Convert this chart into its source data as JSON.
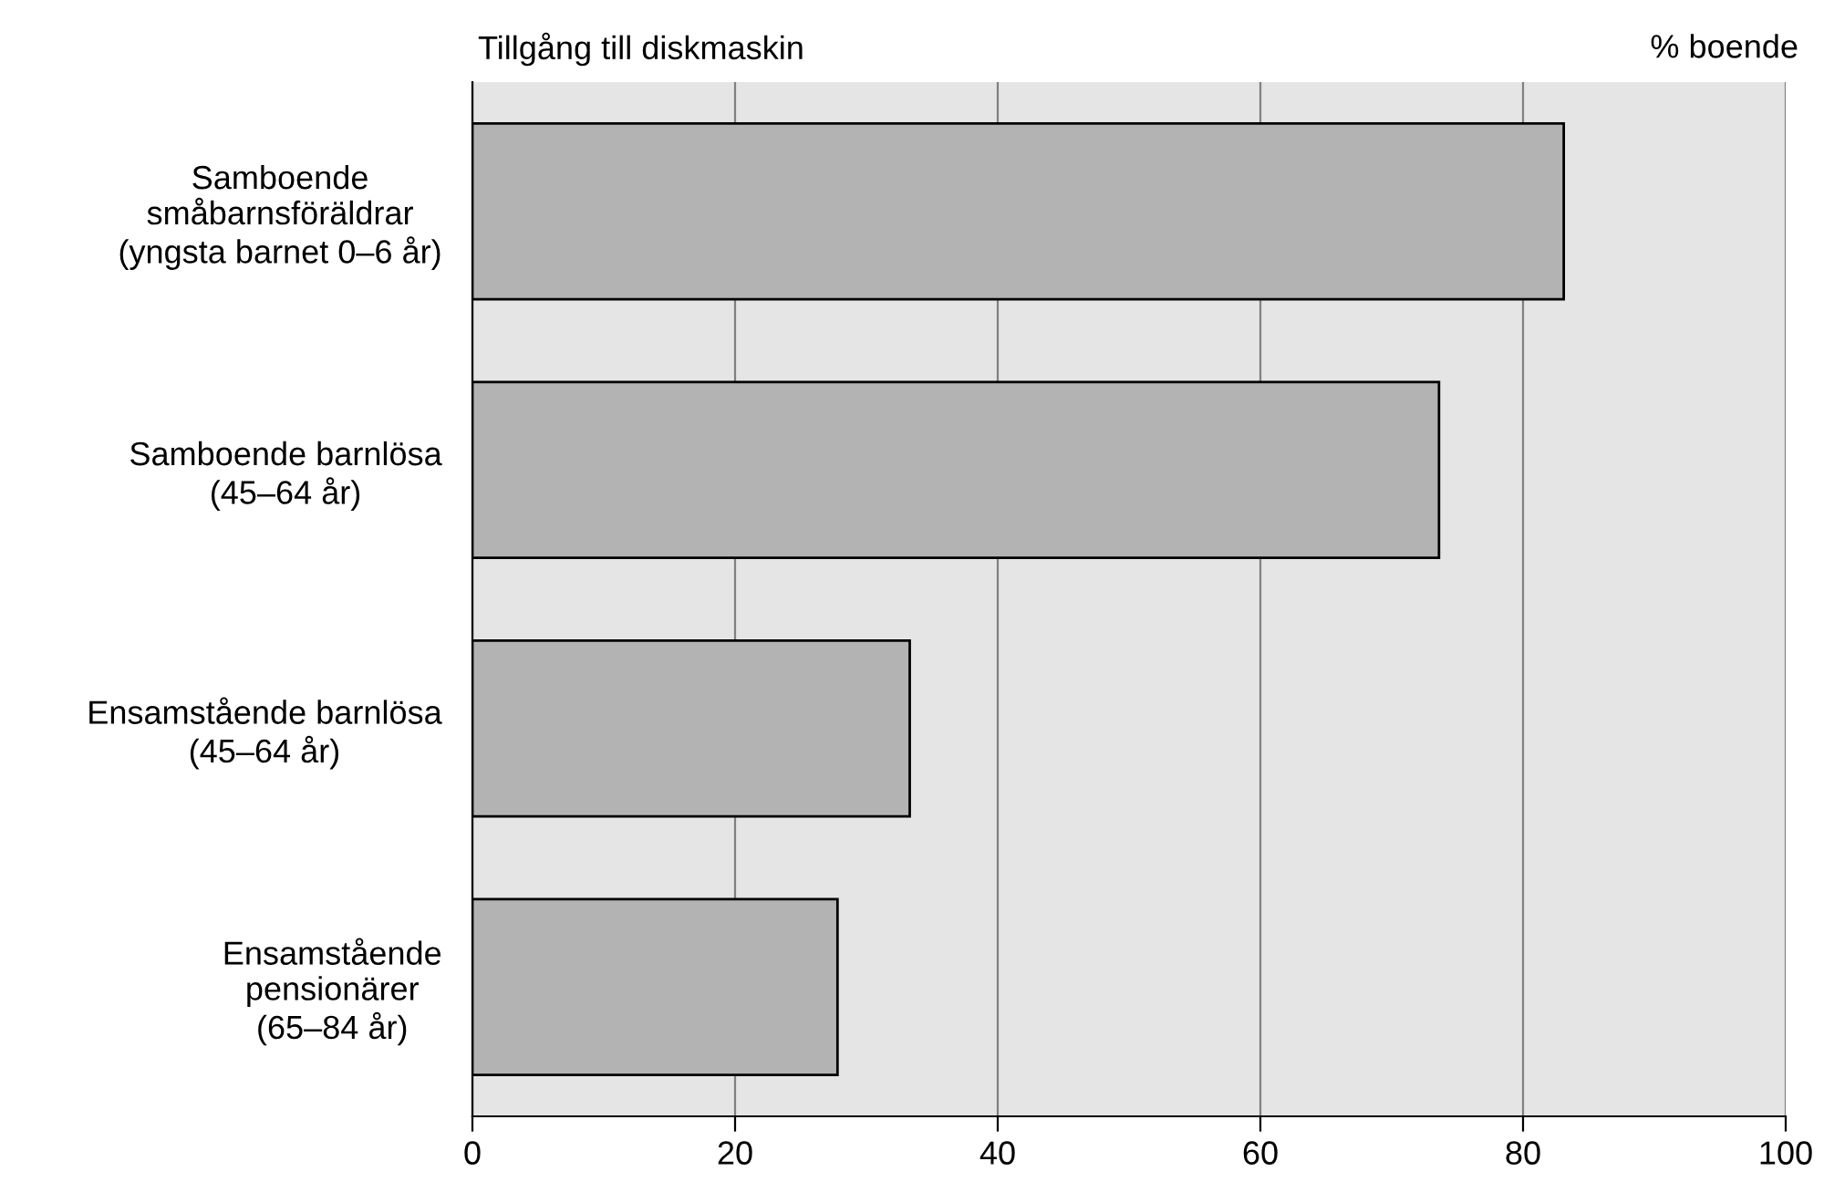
{
  "chart_data": {
    "type": "bar",
    "orientation": "horizontal",
    "title": "Tillgång till diskmaskin",
    "xlabel": "% boende",
    "categories": [
      "Samboende\nsmåbarnsföräldrar\n(yngsta barnet 0–6 år)",
      "Samboende barnlösa\n(45–64 år)",
      "Ensamstående barnlösa\n(45–64 år)",
      "Ensamstående\npensionärer\n(65–84 år)"
    ],
    "values": [
      83.1,
      73.6,
      33.3,
      27.8
    ],
    "color": "#b3b3b3",
    "xlim": [
      0,
      100
    ],
    "xticks": [
      0,
      20,
      40,
      60,
      80,
      100
    ],
    "grid": "x"
  }
}
